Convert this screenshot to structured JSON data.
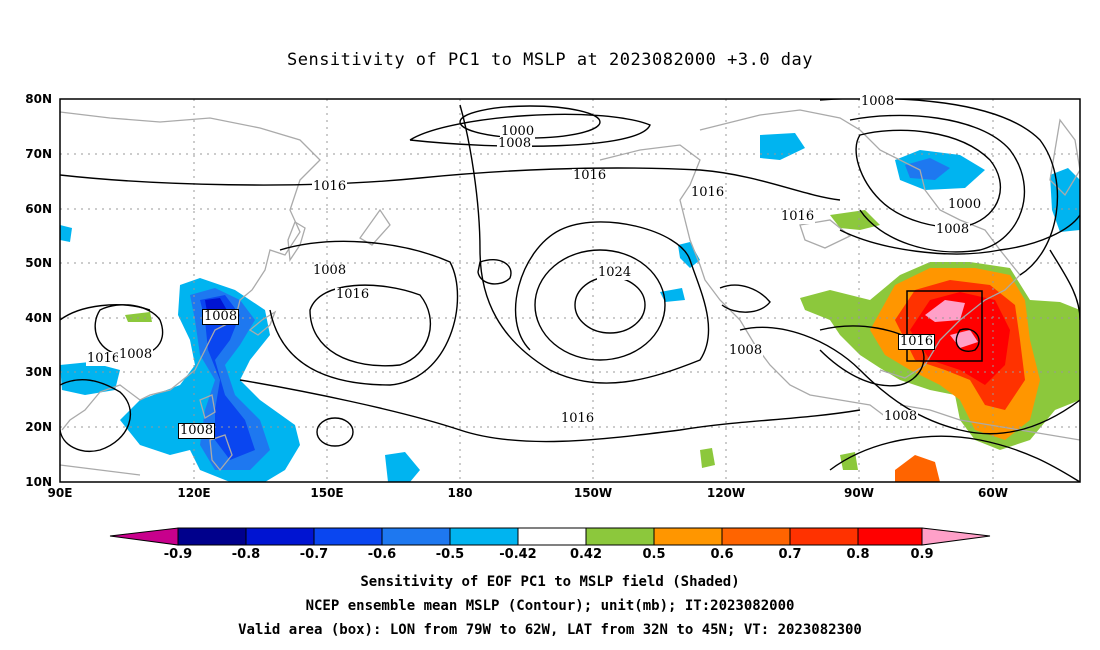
{
  "title": "Sensitivity of PC1 to MSLP at 2023082000 +3.0 day",
  "lat_labels": [
    "80N",
    "70N",
    "60N",
    "50N",
    "40N",
    "30N",
    "20N",
    "10N"
  ],
  "lon_labels": [
    "90E",
    "120E",
    "150E",
    "180",
    "150W",
    "120W",
    "90W",
    "60W"
  ],
  "contour_labels": [
    "1000",
    "1008",
    "1016",
    "1016",
    "1016",
    "1008",
    "1016",
    "1024",
    "1008",
    "1016",
    "1016",
    "1008",
    "1008",
    "1016",
    "1008",
    "1008",
    "1000",
    "1008",
    "1016",
    "1008"
  ],
  "colorbar": {
    "labels": [
      "-0.9",
      "-0.8",
      "-0.7",
      "-0.6",
      "-0.5",
      "-0.42",
      "0.42",
      "0.5",
      "0.6",
      "0.7",
      "0.8",
      "0.9"
    ],
    "colors": [
      "#c8008c",
      "#00008c",
      "#0014d2",
      "#0a46f0",
      "#1e78f0",
      "#00b4f0",
      "#ffffff",
      "#8cc83c",
      "#ff9600",
      "#ff6400",
      "#ff3200",
      "#ff0000",
      "#ffa0c8"
    ]
  },
  "valid_box": {
    "lon_min": -79,
    "lon_max": -62,
    "lat_min": 32,
    "lat_max": 45
  },
  "footer": {
    "line1": "Sensitivity of EOF PC1 to MSLP field (Shaded)",
    "line2": "NCEP ensemble mean MSLP (Contour); unit(mb); IT:2023082000",
    "line3": "Valid area (box): LON from 79W to 62W, LAT from 32N to 45N; VT: 2023082300"
  }
}
